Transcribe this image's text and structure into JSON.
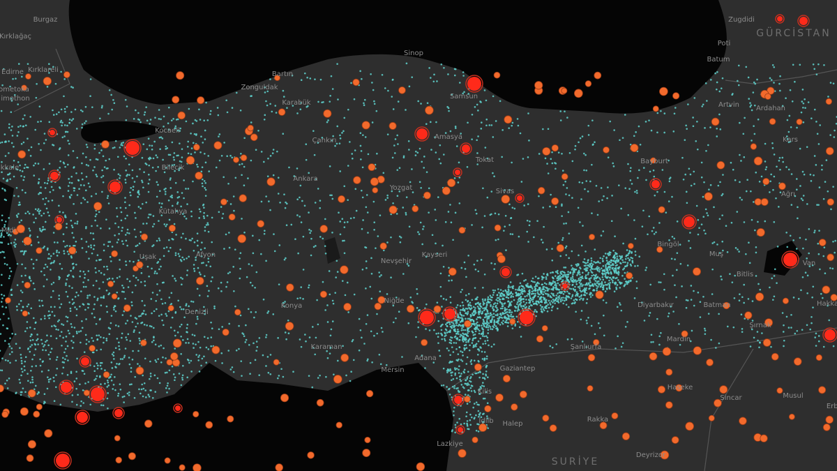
{
  "labels": [
    {
      "text": "Burgaz"
    },
    {
      "text": "Kırklağaç"
    },
    {
      "text": "Edirne"
    },
    {
      "text": "Kırklareli"
    },
    {
      "text": "ometoka"
    },
    {
      "text": "imothon"
    },
    {
      "text": "Bartın"
    },
    {
      "text": "Zonguldak"
    },
    {
      "text": "Karabük"
    },
    {
      "text": "Sinop"
    },
    {
      "text": "Samsun"
    },
    {
      "text": "Kocaeli"
    },
    {
      "text": "Bilecik"
    },
    {
      "text": "Çankırı"
    },
    {
      "text": "Amasya"
    },
    {
      "text": "Tokat"
    },
    {
      "text": "Ankara"
    },
    {
      "text": "Yozgat"
    },
    {
      "text": "Sivas"
    },
    {
      "text": "Kütahya"
    },
    {
      "text": "Afyon"
    },
    {
      "text": "Uşak"
    },
    {
      "text": "Nevşehir"
    },
    {
      "text": "Kayseri"
    },
    {
      "text": "Konya"
    },
    {
      "text": "Niğde"
    },
    {
      "text": "Karaman"
    },
    {
      "text": "Mersin"
    },
    {
      "text": "Adana"
    },
    {
      "text": "Kilis"
    },
    {
      "text": "Gaziantep"
    },
    {
      "text": "Şanlıurfa"
    },
    {
      "text": "Halep"
    },
    {
      "text": "İdlib"
    },
    {
      "text": "Lazkiye"
    },
    {
      "text": "Rakka"
    },
    {
      "text": "Deyrizor"
    },
    {
      "text": "SURİYE"
    },
    {
      "text": "Haseke"
    },
    {
      "text": "Sincar"
    },
    {
      "text": "Musul"
    },
    {
      "text": "Erbil"
    },
    {
      "text": "Mardin"
    },
    {
      "text": "Diyarbakır"
    },
    {
      "text": "Batman"
    },
    {
      "text": "Şırnak"
    },
    {
      "text": "Hakkari"
    },
    {
      "text": "Bitlis"
    },
    {
      "text": "Muş"
    },
    {
      "text": "Van"
    },
    {
      "text": "Bingöl"
    },
    {
      "text": "Ağrı"
    },
    {
      "text": "Bayburt"
    },
    {
      "text": "Kars"
    },
    {
      "text": "Ardahan"
    },
    {
      "text": "Artvin"
    },
    {
      "text": "Batum"
    },
    {
      "text": "Poti"
    },
    {
      "text": "Zugdidi"
    },
    {
      "text": "GÜRCİSTAN"
    },
    {
      "text": "kkale"
    },
    {
      "text": "Midi"
    },
    {
      "text": "Denizli"
    }
  ]
}
